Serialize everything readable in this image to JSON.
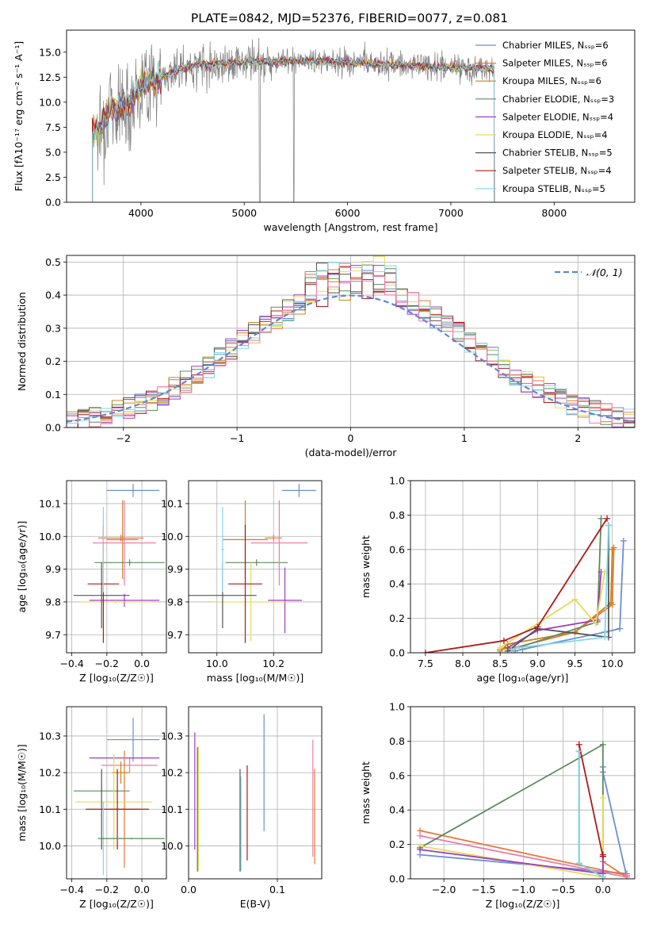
{
  "figure_title": "PLATE=0842, MJD=52376, FIBERID=0077, z=0.081",
  "colors": [
    "#6a8fd6",
    "#e8783a",
    "#c8831b",
    "#5e8a5e",
    "#a13bbd",
    "#e3dc58",
    "#555555",
    "#b01818",
    "#80d8e8",
    "#f07ca8",
    "#7f7f7f"
  ],
  "chart_data": [
    {
      "id": "spectrum",
      "type": "line",
      "title": "PLATE=0842, MJD=52376, FIBERID=0077, z=0.081",
      "xlabel": "wavelength [Angstrom, rest frame]",
      "ylabel": "Flux [fλ10⁻¹⁷ erg cm⁻² s⁻¹ A⁻¹]",
      "xlim": [
        3280,
        8780
      ],
      "ylim": [
        0,
        17.2
      ],
      "xticks": [
        "4000",
        "5000",
        "6000",
        "7000",
        "8000"
      ],
      "xtick_values": [
        4000,
        5000,
        6000,
        7000,
        8000
      ],
      "yticks": [
        "0.0",
        "2.5",
        "5.0",
        "7.5",
        "10.0",
        "12.5",
        "15.0"
      ],
      "ytick_values": [
        0,
        2.5,
        5,
        7.5,
        10,
        12.5,
        15
      ],
      "grid": false,
      "legend_position": "right",
      "legend": [
        "Chabrier MILES, Nₛₛₚ=6",
        "Salpeter MILES, Nₛₛₚ=6",
        "Kroupa MILES, Nₛₛₚ=6",
        "Chabrier ELODIE, Nₛₛₚ=3",
        "Salpeter ELODIE, Nₛₛₚ=4",
        "Kroupa ELODIE, Nₛₛₚ=4",
        "Chabrier STELIB, Nₛₛₚ=5",
        "Salpeter STELIB, Nₛₛₚ=4",
        "Kroupa STELIB, Nₛₛₚ=5"
      ],
      "continuum": {
        "x": [
          3530,
          3600,
          3700,
          3800,
          3900,
          4000,
          4100,
          4200,
          4300,
          4400,
          4500,
          4600,
          4700,
          4800,
          4900,
          5000,
          5200,
          5400,
          5600,
          5800,
          6000,
          6200,
          6400,
          6600,
          6800,
          7000,
          7200,
          7400
        ],
        "y": [
          7.5,
          7.2,
          9.2,
          9.5,
          10.0,
          11.8,
          12.2,
          12.4,
          13.0,
          13.3,
          13.6,
          13.8,
          13.8,
          13.9,
          14.0,
          14.0,
          14.1,
          14.1,
          14.1,
          14.1,
          14.0,
          13.9,
          13.8,
          13.7,
          13.6,
          13.5,
          13.4,
          13.3
        ]
      },
      "data_range": [
        3530,
        8520
      ]
    },
    {
      "id": "residuals",
      "type": "line",
      "xlabel": "(data-model)/error",
      "ylabel": "Normed distribution",
      "xlim": [
        -2.5,
        2.5
      ],
      "ylim": [
        0,
        0.52
      ],
      "xticks": [
        "−2",
        "−1",
        "0",
        "1",
        "2"
      ],
      "xtick_values": [
        -2,
        -1,
        0,
        1,
        2
      ],
      "yticks": [
        "0.0",
        "0.1",
        "0.2",
        "0.3",
        "0.4",
        "0.5"
      ],
      "ytick_values": [
        0,
        0.1,
        0.2,
        0.3,
        0.4,
        0.5
      ],
      "grid": true,
      "legend_position": "top-right",
      "legend": [
        "𝒩(0, 1)"
      ],
      "bin_width": 0.1
    },
    {
      "id": "age-vs-Z",
      "type": "scatter",
      "xlabel": "Z [log₁₀(Z/Z☉)]",
      "ylabel": "age  [log₁₀(age/yr)]",
      "xlim": [
        -0.43,
        0.14
      ],
      "ylim": [
        9.645,
        10.17
      ],
      "xticks": [
        "−0.4",
        "−0.2",
        "0.0"
      ],
      "xtick_values": [
        -0.4,
        -0.2,
        0
      ],
      "yticks": [
        "9.7",
        "9.8",
        "9.9",
        "10.0",
        "10.1"
      ],
      "ytick_values": [
        9.7,
        9.8,
        9.9,
        10.0,
        10.1
      ],
      "grid": true,
      "points": [
        {
          "x": -0.05,
          "xerr": 0.15,
          "y": 10.14,
          "yerr": 0.02,
          "c": 0
        },
        {
          "x": -0.12,
          "xerr": 0.13,
          "y": 9.995,
          "yerr": 0.01,
          "c": 1
        },
        {
          "x": -0.11,
          "xerr": 0.09,
          "y": 9.99,
          "yerr": 0.12,
          "c": 2
        },
        {
          "x": -0.07,
          "xerr": 0.2,
          "y": 9.92,
          "yerr": 0.01,
          "c": 3
        },
        {
          "x": -0.1,
          "xerr": 0.2,
          "y": 9.805,
          "yerr": 0.02,
          "c": 4
        },
        {
          "x": -0.15,
          "xerr": 0.2,
          "y": 9.8,
          "yerr": 0.005,
          "c": 5
        },
        {
          "x": -0.23,
          "xerr": 0.16,
          "y": 9.82,
          "yerr": 0.1,
          "c": 6
        },
        {
          "x": -0.22,
          "xerr": 0.09,
          "y": 9.855,
          "yerr": 0.18,
          "c": 7
        },
        {
          "x": -0.22,
          "xerr": 0.005,
          "y": 9.96,
          "yerr": 0.13,
          "c": 8
        },
        {
          "x": -0.1,
          "xerr": 0.18,
          "y": 9.98,
          "yerr": 0.13,
          "c": 9
        }
      ]
    },
    {
      "id": "age-vs-mass",
      "type": "scatter",
      "xlabel": "mass [log₁₀(M/M☉)]",
      "ylabel": "",
      "xlim": [
        9.9,
        10.37
      ],
      "ylim": [
        9.645,
        10.17
      ],
      "xticks": [
        "10.0",
        "10.2"
      ],
      "xtick_values": [
        10.0,
        10.2
      ],
      "yticks": [
        "9.7",
        "9.8",
        "9.9",
        "10.0",
        "10.1"
      ],
      "ytick_values": [
        9.7,
        9.8,
        9.9,
        10.0,
        10.1
      ],
      "grid": true,
      "points": [
        {
          "x": 10.29,
          "xerr": 0.06,
          "y": 10.14,
          "yerr": 0.02,
          "c": 0
        },
        {
          "x": 10.2,
          "xerr": 0.03,
          "y": 9.995,
          "yerr": 0.01,
          "c": 1
        },
        {
          "x": 10.1,
          "xerr": 0.08,
          "y": 9.99,
          "yerr": 0.12,
          "c": 2
        },
        {
          "x": 10.14,
          "xerr": 0.11,
          "y": 9.92,
          "yerr": 0.01,
          "c": 3
        },
        {
          "x": 10.24,
          "xerr": 0.06,
          "y": 9.805,
          "yerr": 0.1,
          "c": 4
        },
        {
          "x": 10.12,
          "xerr": 0.13,
          "y": 9.8,
          "yerr": 0.12,
          "c": 5
        },
        {
          "x": 10.02,
          "xerr": 0.12,
          "y": 9.82,
          "yerr": 0.1,
          "c": 6
        },
        {
          "x": 10.1,
          "xerr": 0.06,
          "y": 9.855,
          "yerr": 0.18,
          "c": 7
        },
        {
          "x": 10.02,
          "xerr": 0.005,
          "y": 9.96,
          "yerr": 0.13,
          "c": 8
        },
        {
          "x": 10.22,
          "xerr": 0.1,
          "y": 9.98,
          "yerr": 0.13,
          "c": 9
        }
      ]
    },
    {
      "id": "weight-vs-age",
      "type": "line",
      "xlabel": "age  [log₁₀(age/yr)]",
      "ylabel": "mass weight",
      "xlim": [
        7.3,
        10.3
      ],
      "ylim": [
        0,
        1.0
      ],
      "xticks": [
        "7.5",
        "8.0",
        "8.5",
        "9.0",
        "9.5",
        "10.0"
      ],
      "xtick_values": [
        7.5,
        8.0,
        8.5,
        9.0,
        9.5,
        10.0
      ],
      "yticks": [
        "0.0",
        "0.2",
        "0.4",
        "0.6",
        "0.8",
        "1.0"
      ],
      "ytick_values": [
        0,
        0.2,
        0.4,
        0.6,
        0.8,
        1.0
      ],
      "grid": true,
      "series": [
        {
          "c": 0,
          "x": [
            8.7,
            8.8,
            9.9,
            10.1,
            10.15
          ],
          "y": [
            0.01,
            0.02,
            0.12,
            0.14,
            0.65
          ]
        },
        {
          "c": 1,
          "x": [
            8.5,
            8.7,
            9.5,
            10.0,
            10.02
          ],
          "y": [
            0.02,
            0.03,
            0.12,
            0.28,
            0.61
          ]
        },
        {
          "c": 2,
          "x": [
            8.5,
            8.6,
            9.5,
            9.98,
            10.0
          ],
          "y": [
            0.01,
            0.05,
            0.12,
            0.29,
            0.6
          ]
        },
        {
          "c": 3,
          "x": [
            8.6,
            9.8,
            9.85
          ],
          "y": [
            0.01,
            0.18,
            0.78
          ]
        },
        {
          "c": 4,
          "x": [
            8.6,
            9.0,
            9.8,
            9.85
          ],
          "y": [
            0.03,
            0.13,
            0.19,
            0.47
          ]
        },
        {
          "c": 5,
          "x": [
            8.5,
            9.5,
            9.78,
            9.9
          ],
          "y": [
            0.03,
            0.31,
            0.17,
            0.47
          ]
        },
        {
          "c": 6,
          "x": [
            8.6,
            9.0,
            9.95,
            9.95
          ],
          "y": [
            0.01,
            0.14,
            0.09,
            0.74
          ]
        },
        {
          "c": 7,
          "x": [
            7.5,
            8.55,
            9.0,
            9.93
          ],
          "y": [
            0.0,
            0.07,
            0.15,
            0.78
          ]
        },
        {
          "c": 8,
          "x": [
            8.65,
            8.75,
            9.9,
            9.95
          ],
          "y": [
            0.02,
            0.03,
            0.09,
            0.74
          ]
        }
      ]
    },
    {
      "id": "mass-vs-Z",
      "type": "scatter",
      "xlabel": "Z [log₁₀(Z/Z☉)]",
      "ylabel": "mass [log₁₀(M/M☉)]",
      "xlim": [
        -0.43,
        0.14
      ],
      "ylim": [
        9.91,
        10.38
      ],
      "xticks": [
        "−0.4",
        "−0.2",
        "0.0"
      ],
      "xtick_values": [
        -0.4,
        -0.2,
        0
      ],
      "yticks": [
        "10.0",
        "10.1",
        "10.2",
        "10.3"
      ],
      "ytick_values": [
        10.0,
        10.1,
        10.2,
        10.3
      ],
      "grid": true,
      "points": [
        {
          "x": -0.05,
          "xerr": 0.15,
          "y": 10.29,
          "yerr": 0.06,
          "c": 0
        },
        {
          "x": -0.07,
          "xerr": 0.16,
          "y": 10.22,
          "yerr": 0.02,
          "c": 9
        },
        {
          "x": -0.1,
          "xerr": 0.2,
          "y": 10.24,
          "yerr": 0.002,
          "c": 4
        },
        {
          "x": -0.1,
          "xerr": 0.09,
          "y": 10.1,
          "yerr": 0.16,
          "c": 1
        },
        {
          "x": -0.12,
          "xerr": 0.05,
          "y": 10.2,
          "yerr": 0.03,
          "c": 2
        },
        {
          "x": -0.23,
          "xerr": 0.16,
          "y": 10.15,
          "yerr": 0.002,
          "c": 3
        },
        {
          "x": -0.16,
          "xerr": 0.22,
          "y": 10.12,
          "yerr": 0.13,
          "c": 5
        },
        {
          "x": -0.14,
          "xerr": 0.18,
          "y": 10.1,
          "yerr": 0.11,
          "c": 7
        },
        {
          "x": -0.23,
          "xerr": 0.005,
          "y": 10.1,
          "yerr": 0.11,
          "c": 6
        },
        {
          "x": -0.22,
          "xerr": 0.005,
          "y": 10.02,
          "yerr": 0.1,
          "c": 8
        },
        {
          "x": -0.06,
          "xerr": 0.19,
          "y": 10.02,
          "yerr": 0.002,
          "c": 3
        }
      ]
    },
    {
      "id": "mass-vs-EBV",
      "type": "scatter",
      "xlabel": "E(B-V)",
      "ylabel": "",
      "xlim": [
        0.0,
        0.15
      ],
      "ylim": [
        9.91,
        10.38
      ],
      "xticks": [
        "0.0",
        "0.1"
      ],
      "xtick_values": [
        0,
        0.1
      ],
      "yticks": [
        "10.0",
        "10.1",
        "10.2",
        "10.3"
      ],
      "ytick_values": [
        10.0,
        10.1,
        10.2,
        10.3
      ],
      "grid": true,
      "points": [
        {
          "x": 0.085,
          "xerr": 0,
          "y": 10.2,
          "yerr": 0.16,
          "c": 0
        },
        {
          "x": 0.14,
          "xerr": 0,
          "y": 10.13,
          "yerr": 0.16,
          "c": 9
        },
        {
          "x": 0.142,
          "xerr": 0,
          "y": 10.08,
          "yerr": 0.13,
          "c": 1
        },
        {
          "x": 0.007,
          "xerr": 0,
          "y": 10.15,
          "yerr": 0.16,
          "c": 4
        },
        {
          "x": 0.01,
          "xerr": 0,
          "y": 10.1,
          "yerr": 0.17,
          "c": 6
        },
        {
          "x": 0.011,
          "xerr": 0,
          "y": 10.1,
          "yerr": 0.17,
          "c": 5
        },
        {
          "x": 0.058,
          "xerr": 0,
          "y": 10.07,
          "yerr": 0.14,
          "c": 6
        },
        {
          "x": 0.066,
          "xerr": 0,
          "y": 10.09,
          "yerr": 0.13,
          "c": 7
        },
        {
          "x": 0.059,
          "xerr": 0,
          "y": 10.06,
          "yerr": 0.13,
          "c": 8
        }
      ]
    },
    {
      "id": "weight-vs-Z",
      "type": "line",
      "xlabel": "Z [log₁₀(Z/Z☉)]",
      "ylabel": "mass weight",
      "xlim": [
        -2.42,
        0.4
      ],
      "ylim": [
        0,
        1.0
      ],
      "xticks": [
        "−2.0",
        "−1.5",
        "−1.0",
        "−0.5",
        "0.0"
      ],
      "xtick_values": [
        -2.0,
        -1.5,
        -1.0,
        -0.5,
        0.0
      ],
      "yticks": [
        "0.0",
        "0.2",
        "0.4",
        "0.6",
        "0.8",
        "1.0"
      ],
      "ytick_values": [
        0,
        0.2,
        0.4,
        0.6,
        0.8,
        1.0
      ],
      "grid": true,
      "series": [
        {
          "c": 0,
          "x": [
            -2.3,
            0.3,
            0.3,
            0.0,
            0.0
          ],
          "y": [
            0.14,
            0.03,
            0.01,
            0.62,
            0.65
          ]
        },
        {
          "c": 1,
          "x": [
            -2.3,
            0.3,
            0.3,
            0.0
          ],
          "y": [
            0.28,
            0.02,
            0.01,
            0.1
          ]
        },
        {
          "c": 9,
          "x": [
            -2.3,
            0.3,
            0.3
          ],
          "y": [
            0.25,
            0.01,
            0.02
          ]
        },
        {
          "c": 3,
          "x": [
            -2.3,
            0.0,
            0.0
          ],
          "y": [
            0.18,
            0.78,
            0.01
          ]
        },
        {
          "c": 5,
          "x": [
            -2.3,
            0.0,
            0.0
          ],
          "y": [
            0.19,
            0.01,
            0.47
          ]
        },
        {
          "c": 4,
          "x": [
            -2.3,
            0.0,
            0.0
          ],
          "y": [
            0.17,
            0.03,
            0.13
          ]
        },
        {
          "c": 7,
          "x": [
            -0.3,
            0.0,
            0.0
          ],
          "y": [
            0.78,
            0.13,
            0.14
          ]
        },
        {
          "c": 6,
          "x": [
            -0.3,
            -0.3,
            0.0
          ],
          "y": [
            0.74,
            0.09,
            0.01
          ]
        },
        {
          "c": 8,
          "x": [
            -0.3,
            -0.3,
            0.0
          ],
          "y": [
            0.74,
            0.09,
            0.01
          ]
        }
      ]
    }
  ]
}
